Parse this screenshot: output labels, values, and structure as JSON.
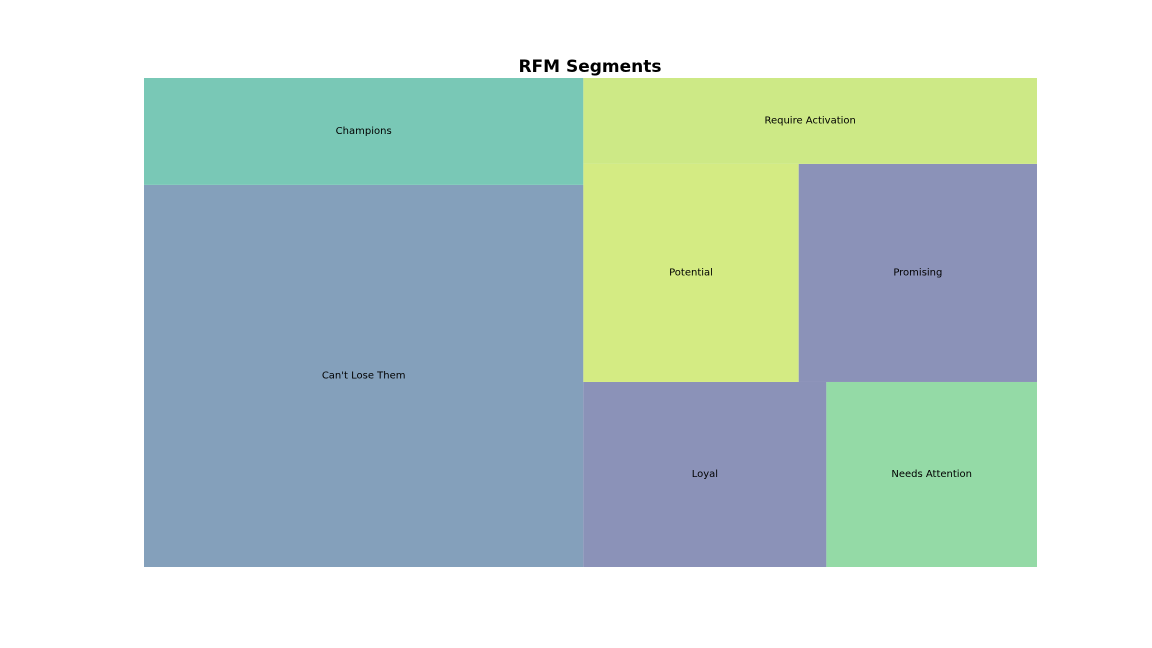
{
  "chart_data": {
    "type": "treemap",
    "title": "RFM Segments",
    "segments": [
      {
        "name": "Can't Lose Them",
        "value": 168,
        "color": "#84a0bb"
      },
      {
        "name": "Champions",
        "value": 47,
        "color": "#79c8b6"
      },
      {
        "name": "Loyal",
        "value": 45,
        "color": "#8b92b8"
      },
      {
        "name": "Needs Attention",
        "value": 39,
        "color": "#94daa6"
      },
      {
        "name": "Potential",
        "value": 47,
        "color": "#d4eb83"
      },
      {
        "name": "Promising",
        "value": 52,
        "color": "#8b92b8"
      },
      {
        "name": "Require Activation",
        "value": 39,
        "color": "#cde986"
      }
    ]
  }
}
